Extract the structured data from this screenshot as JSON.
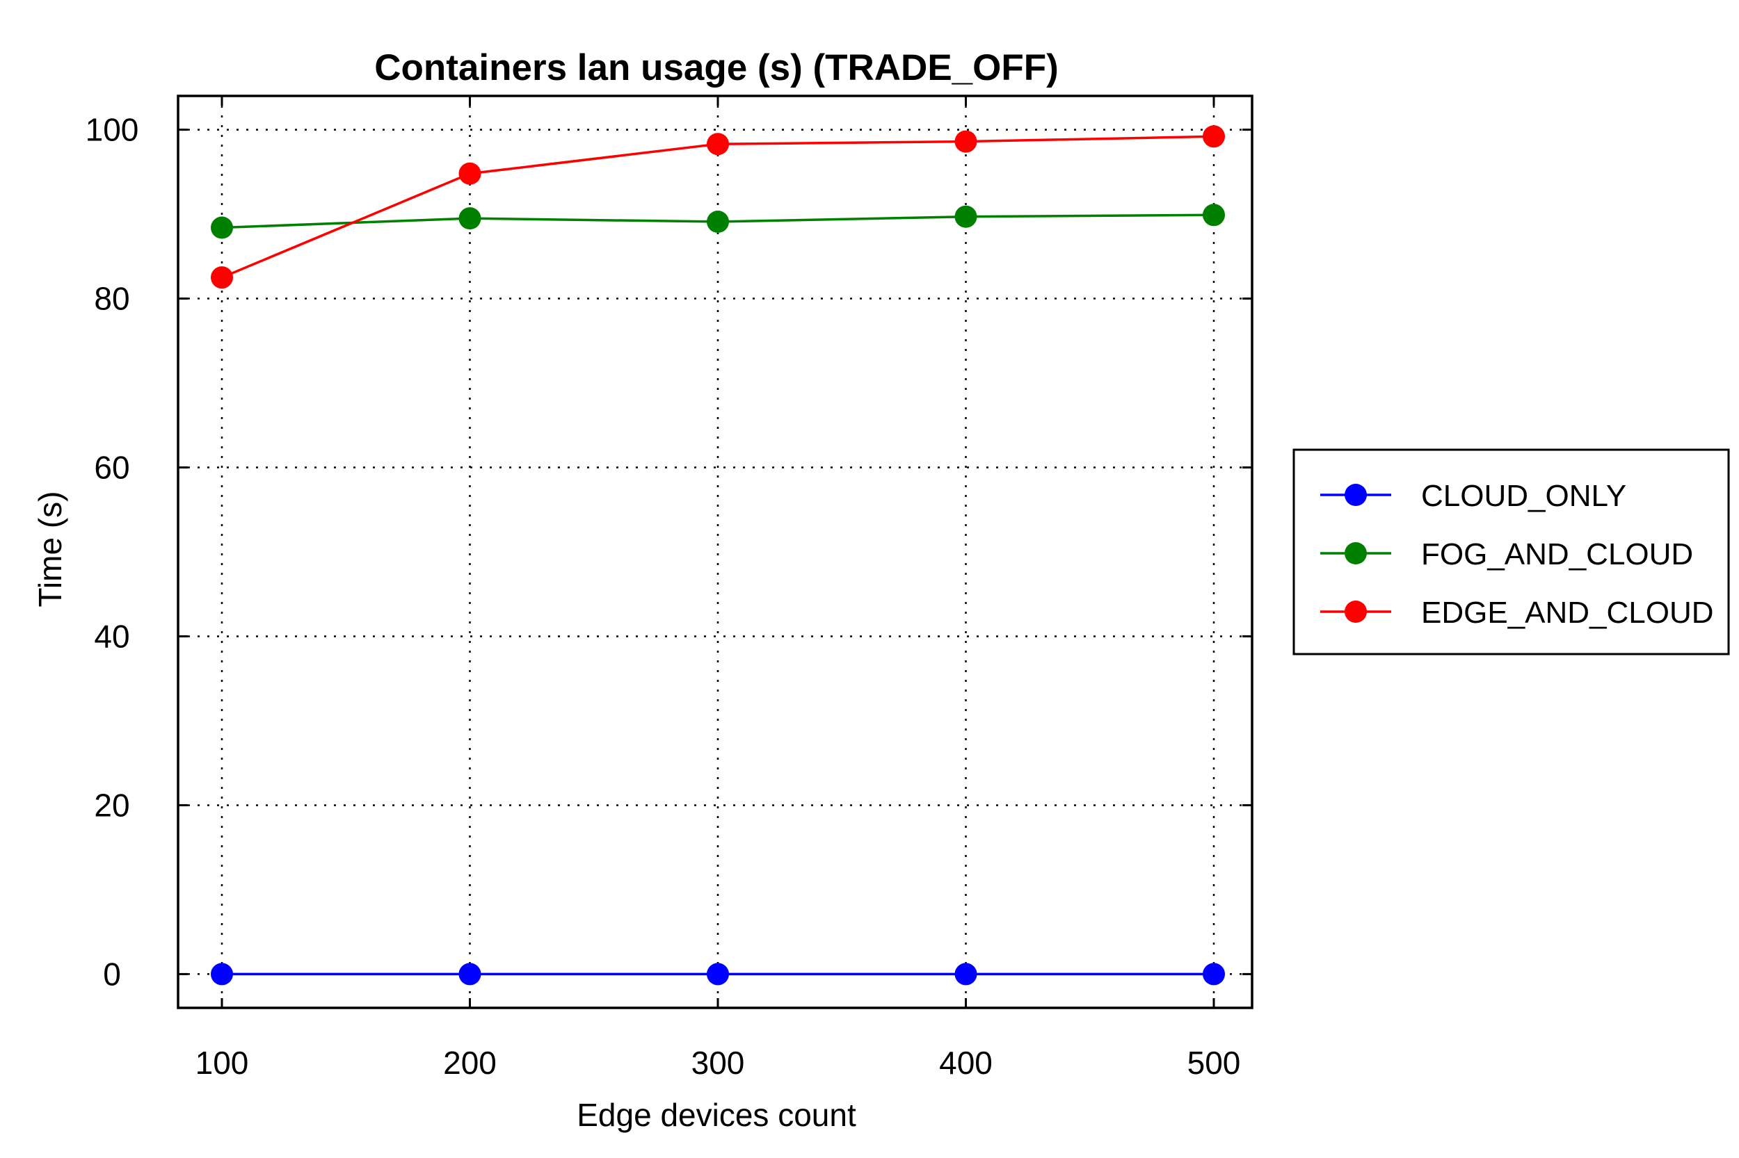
{
  "chart_data": {
    "type": "line",
    "title": "Containers lan usage (s) (TRADE_OFF)",
    "xlabel": "Edge devices count",
    "ylabel": "Time (s)",
    "x": [
      100,
      200,
      300,
      400,
      500
    ],
    "xticks": [
      "100",
      "200",
      "300",
      "400",
      "500"
    ],
    "yticks": [
      "0",
      "20",
      "40",
      "60",
      "80",
      "100"
    ],
    "ylim": [
      -4,
      104
    ],
    "grid": true,
    "legend_position": "right",
    "series": [
      {
        "name": "CLOUD_ONLY",
        "color": "#0000ff",
        "values": [
          0,
          0,
          0,
          0,
          0
        ]
      },
      {
        "name": "FOG_AND_CLOUD",
        "color": "#008000",
        "values": [
          88.4,
          89.5,
          89.1,
          89.7,
          89.9
        ]
      },
      {
        "name": "EDGE_AND_CLOUD",
        "color": "#ff0000",
        "values": [
          82.5,
          94.8,
          98.3,
          98.6,
          99.2
        ]
      }
    ]
  }
}
